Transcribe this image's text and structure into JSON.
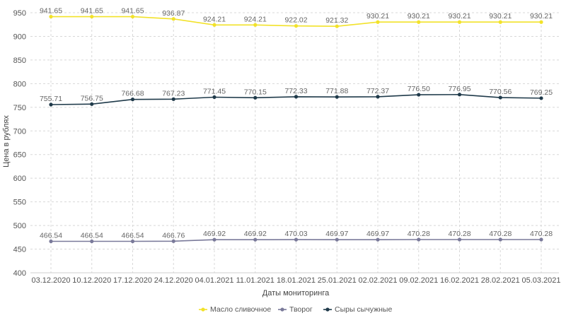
{
  "chart_data": {
    "type": "line",
    "xlabel": "Даты мониторинга",
    "ylabel": "Цена в рублях",
    "ylim": [
      400,
      950
    ],
    "yticks": [
      400,
      450,
      500,
      550,
      600,
      650,
      700,
      750,
      800,
      850,
      900,
      950
    ],
    "grid": true,
    "legend_position": "bottom-center",
    "categories": [
      "03.12.2020",
      "10.12.2020",
      "17.12.2020",
      "24.12.2020",
      "04.01.2021",
      "11.01.2021",
      "18.01.2021",
      "25.01.2021",
      "02.02.2021",
      "09.02.2021",
      "16.02.2021",
      "28.02.2021",
      "05.03.2021"
    ],
    "series": [
      {
        "name": "Масло сливочное",
        "color": "#f2e22a",
        "values": [
          941.65,
          941.65,
          941.65,
          936.87,
          924.21,
          924.21,
          922.02,
          921.32,
          930.21,
          930.21,
          930.21,
          930.21,
          930.21
        ],
        "labels": [
          "941.65",
          "941.65",
          "941.65",
          "936.87",
          "924.21",
          "924.21",
          "922.02",
          "921.32",
          "930.21",
          "930.21",
          "930.21",
          "930.21",
          "930.21"
        ]
      },
      {
        "name": "Творог",
        "color": "#7a7a9a",
        "values": [
          466.54,
          466.54,
          466.54,
          466.76,
          469.92,
          469.92,
          470.03,
          469.97,
          469.97,
          470.28,
          470.28,
          470.28,
          470.28
        ],
        "labels": [
          "466.54",
          "466.54",
          "466.54",
          "466.76",
          "469.92",
          "469.92",
          "470.03",
          "469.97",
          "469.97",
          "470.28",
          "470.28",
          "470.28",
          "470.28"
        ]
      },
      {
        "name": "Сыры сычужные",
        "color": "#1f3a4a",
        "values": [
          755.71,
          756.75,
          766.68,
          767.23,
          771.45,
          770.15,
          772.33,
          771.88,
          772.37,
          776.5,
          776.95,
          770.56,
          769.25
        ],
        "labels": [
          "755.71",
          "756.75",
          "766.68",
          "767.23",
          "771.45",
          "770.15",
          "772.33",
          "771.88",
          "772.37",
          "776.50",
          "776.95",
          "770.56",
          "769.25"
        ]
      }
    ]
  }
}
